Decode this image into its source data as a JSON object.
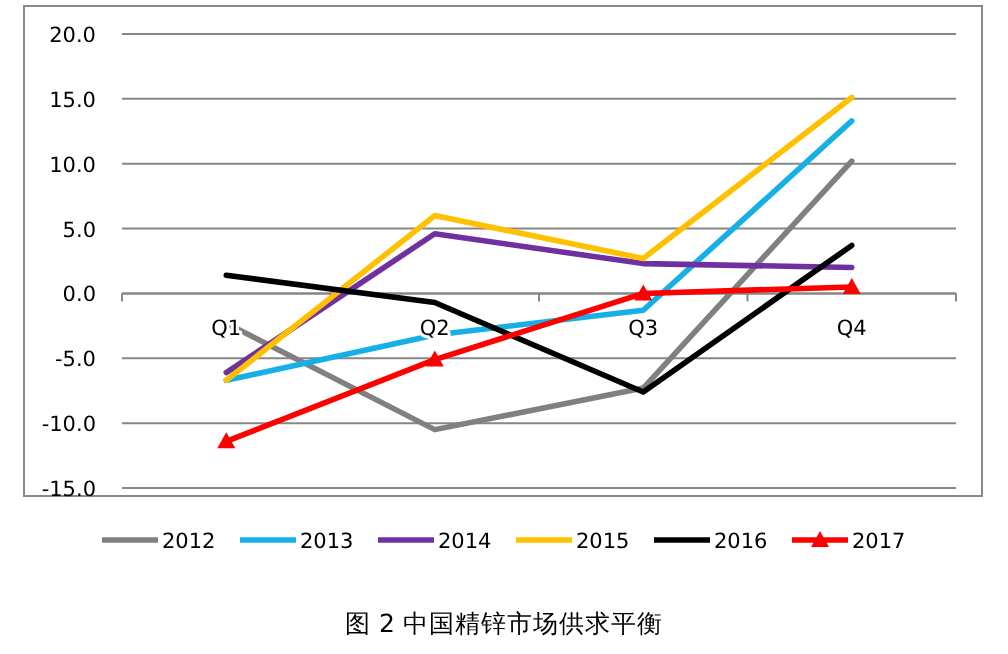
{
  "chart_data": {
    "type": "line",
    "title": "图 2 中国精锌市场供求平衡",
    "categories": [
      "Q1",
      "Q2",
      "Q3",
      "Q4"
    ],
    "series": [
      {
        "name": "2012",
        "color": "#808080",
        "values": [
          -2.3,
          -10.5,
          -7.3,
          10.2
        ]
      },
      {
        "name": "2013",
        "color": "#17b0e6",
        "values": [
          -6.7,
          -3.2,
          -1.3,
          13.3
        ]
      },
      {
        "name": "2014",
        "color": "#7030a0",
        "values": [
          -6.1,
          4.6,
          2.3,
          2.0
        ]
      },
      {
        "name": "2015",
        "color": "#ffc000",
        "values": [
          -6.7,
          6.0,
          2.7,
          15.1
        ]
      },
      {
        "name": "2016",
        "color": "#000000",
        "values": [
          1.4,
          -0.7,
          -7.6,
          3.7
        ]
      },
      {
        "name": "2017",
        "color": "#ff0000",
        "marker": "triangle",
        "values": [
          -11.4,
          -5.1,
          0.0,
          0.5
        ]
      }
    ],
    "ylim": [
      -15,
      20
    ],
    "yticks": [
      {
        "value": -15,
        "label": "-15.0"
      },
      {
        "value": -10,
        "label": "-10.0"
      },
      {
        "value": -5,
        "label": "-5.0"
      },
      {
        "value": 0,
        "label": "0.0"
      },
      {
        "value": 5,
        "label": "5.0"
      },
      {
        "value": 10,
        "label": "10.0"
      },
      {
        "value": 15,
        "label": "15.0"
      },
      {
        "value": 20,
        "label": "20.0"
      }
    ],
    "grid": "y",
    "legend": "bottom",
    "marker": "none",
    "line_style": "solid"
  }
}
